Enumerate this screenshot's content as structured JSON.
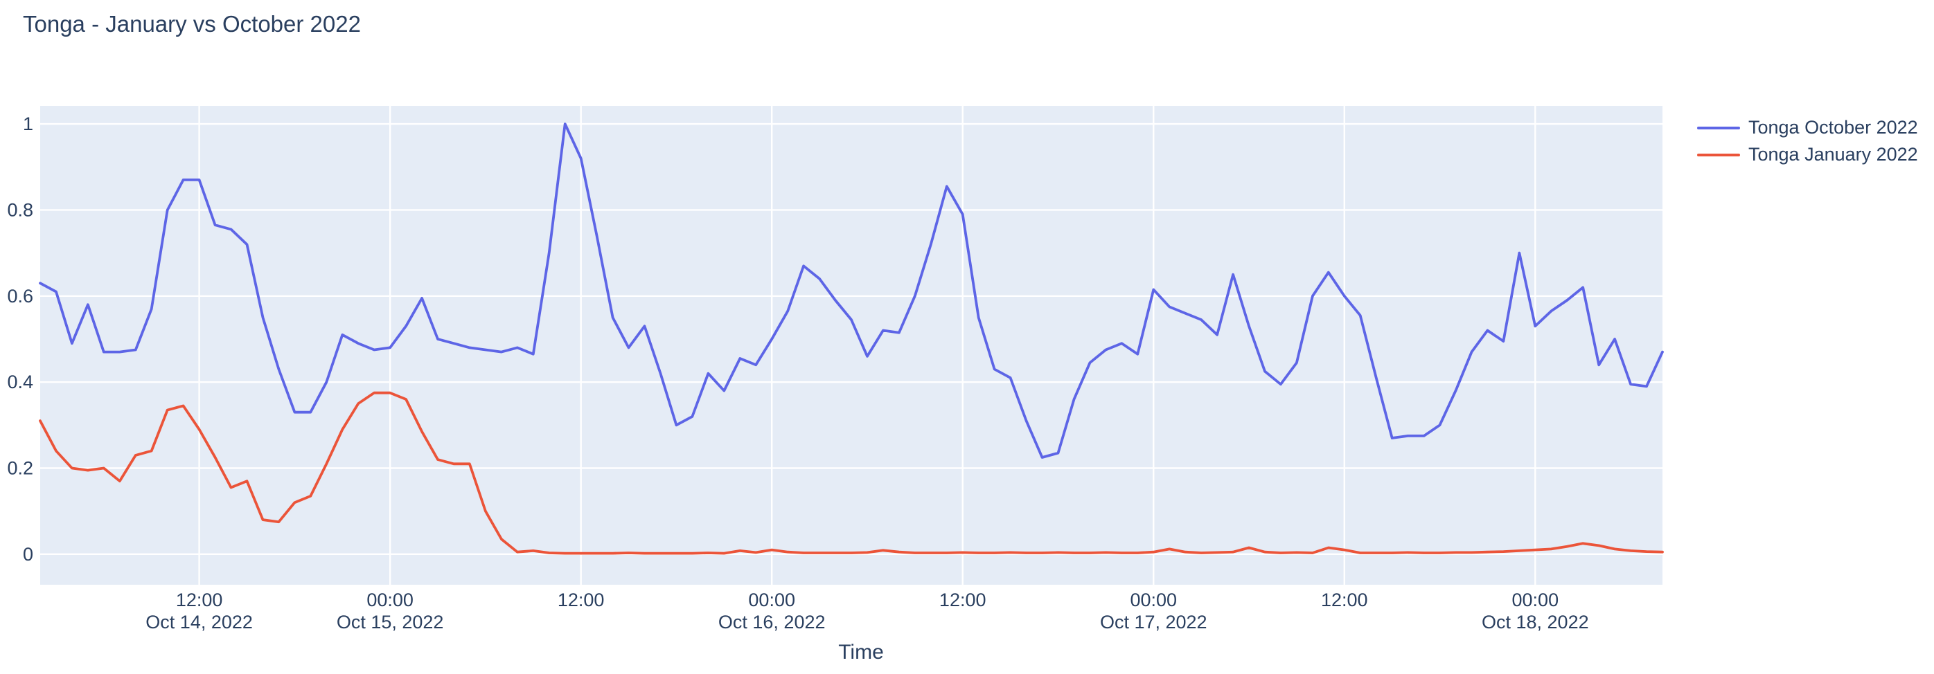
{
  "title": "Tonga - January vs October 2022",
  "colors": {
    "plot_background": "#E5ECF6",
    "gridline": "#FFFFFF",
    "text": "#2a3f5f",
    "page_background": "#FFFFFF",
    "october_line": "#5D65E6",
    "january_line": "#EB5439"
  },
  "legend": {
    "items": [
      {
        "label": "Tonga October 2022",
        "color": "#5D65E6"
      },
      {
        "label": "Tonga January 2022",
        "color": "#EB5439"
      }
    ]
  },
  "chart_data": {
    "type": "line",
    "title": "Tonga - January vs October 2022",
    "xlabel": "Time",
    "ylabel": "",
    "grid": true,
    "legend_position": "top-right",
    "x_description": "hourly samples from Oct 14, 2022 02:00 to Oct 18, 2022 08:00",
    "n_points": 103,
    "data_ylim": [
      0,
      1
    ],
    "axis_ylim": [
      -0.071,
      1.042
    ],
    "y_ticks": [
      {
        "value": 0,
        "label": "0"
      },
      {
        "value": 0.2,
        "label": "0.2"
      },
      {
        "value": 0.4,
        "label": "0.4"
      },
      {
        "value": 0.6,
        "label": "0.6"
      },
      {
        "value": 0.8,
        "label": "0.8"
      },
      {
        "value": 1,
        "label": "1"
      }
    ],
    "x_ticks": [
      {
        "hour_index": 10,
        "time": "12:00",
        "date": "Oct 14, 2022"
      },
      {
        "hour_index": 22,
        "time": "00:00",
        "date": "Oct 15, 2022"
      },
      {
        "hour_index": 34,
        "time": "12:00",
        "date": ""
      },
      {
        "hour_index": 46,
        "time": "00:00",
        "date": "Oct 16, 2022"
      },
      {
        "hour_index": 58,
        "time": "12:00",
        "date": ""
      },
      {
        "hour_index": 70,
        "time": "00:00",
        "date": "Oct 17, 2022"
      },
      {
        "hour_index": 82,
        "time": "12:00",
        "date": ""
      },
      {
        "hour_index": 94,
        "time": "00:00",
        "date": "Oct 18, 2022"
      }
    ],
    "series": [
      {
        "name": "Tonga October 2022",
        "color": "#5D65E6",
        "values": [
          0.63,
          0.61,
          0.49,
          0.58,
          0.47,
          0.47,
          0.475,
          0.57,
          0.8,
          0.87,
          0.87,
          0.765,
          0.755,
          0.72,
          0.55,
          0.43,
          0.33,
          0.33,
          0.4,
          0.51,
          0.49,
          0.475,
          0.48,
          0.53,
          0.595,
          0.5,
          0.49,
          0.48,
          0.475,
          0.47,
          0.48,
          0.465,
          0.7,
          1.0,
          0.92,
          0.74,
          0.55,
          0.48,
          0.53,
          0.42,
          0.3,
          0.32,
          0.42,
          0.38,
          0.455,
          0.44,
          0.5,
          0.565,
          0.67,
          0.64,
          0.59,
          0.545,
          0.46,
          0.52,
          0.515,
          0.6,
          0.72,
          0.855,
          0.79,
          0.55,
          0.43,
          0.41,
          0.31,
          0.225,
          0.235,
          0.36,
          0.445,
          0.475,
          0.49,
          0.465,
          0.615,
          0.575,
          0.56,
          0.545,
          0.51,
          0.65,
          0.53,
          0.425,
          0.395,
          0.445,
          0.6,
          0.655,
          0.6,
          0.555,
          0.41,
          0.27,
          0.275,
          0.275,
          0.3,
          0.38,
          0.47,
          0.52,
          0.495,
          0.7,
          0.53,
          0.565,
          0.59,
          0.62,
          0.44,
          0.5,
          0.395,
          0.39,
          0.47
        ]
      },
      {
        "name": "Tonga January 2022",
        "color": "#EB5439",
        "values": [
          0.31,
          0.24,
          0.2,
          0.195,
          0.2,
          0.17,
          0.23,
          0.24,
          0.335,
          0.345,
          0.29,
          0.225,
          0.155,
          0.17,
          0.08,
          0.075,
          0.12,
          0.135,
          0.21,
          0.29,
          0.35,
          0.375,
          0.375,
          0.36,
          0.285,
          0.22,
          0.21,
          0.21,
          0.1,
          0.035,
          0.005,
          0.008,
          0.003,
          0.002,
          0.002,
          0.002,
          0.002,
          0.003,
          0.002,
          0.002,
          0.002,
          0.002,
          0.003,
          0.002,
          0.008,
          0.004,
          0.01,
          0.005,
          0.003,
          0.003,
          0.003,
          0.003,
          0.004,
          0.009,
          0.005,
          0.003,
          0.003,
          0.003,
          0.004,
          0.003,
          0.003,
          0.004,
          0.003,
          0.003,
          0.004,
          0.003,
          0.003,
          0.004,
          0.003,
          0.003,
          0.005,
          0.012,
          0.005,
          0.003,
          0.004,
          0.005,
          0.015,
          0.005,
          0.003,
          0.004,
          0.003,
          0.015,
          0.01,
          0.003,
          0.003,
          0.003,
          0.004,
          0.003,
          0.003,
          0.004,
          0.004,
          0.005,
          0.006,
          0.008,
          0.01,
          0.012,
          0.018,
          0.025,
          0.02,
          0.012,
          0.008,
          0.006,
          0.005
        ]
      }
    ]
  }
}
